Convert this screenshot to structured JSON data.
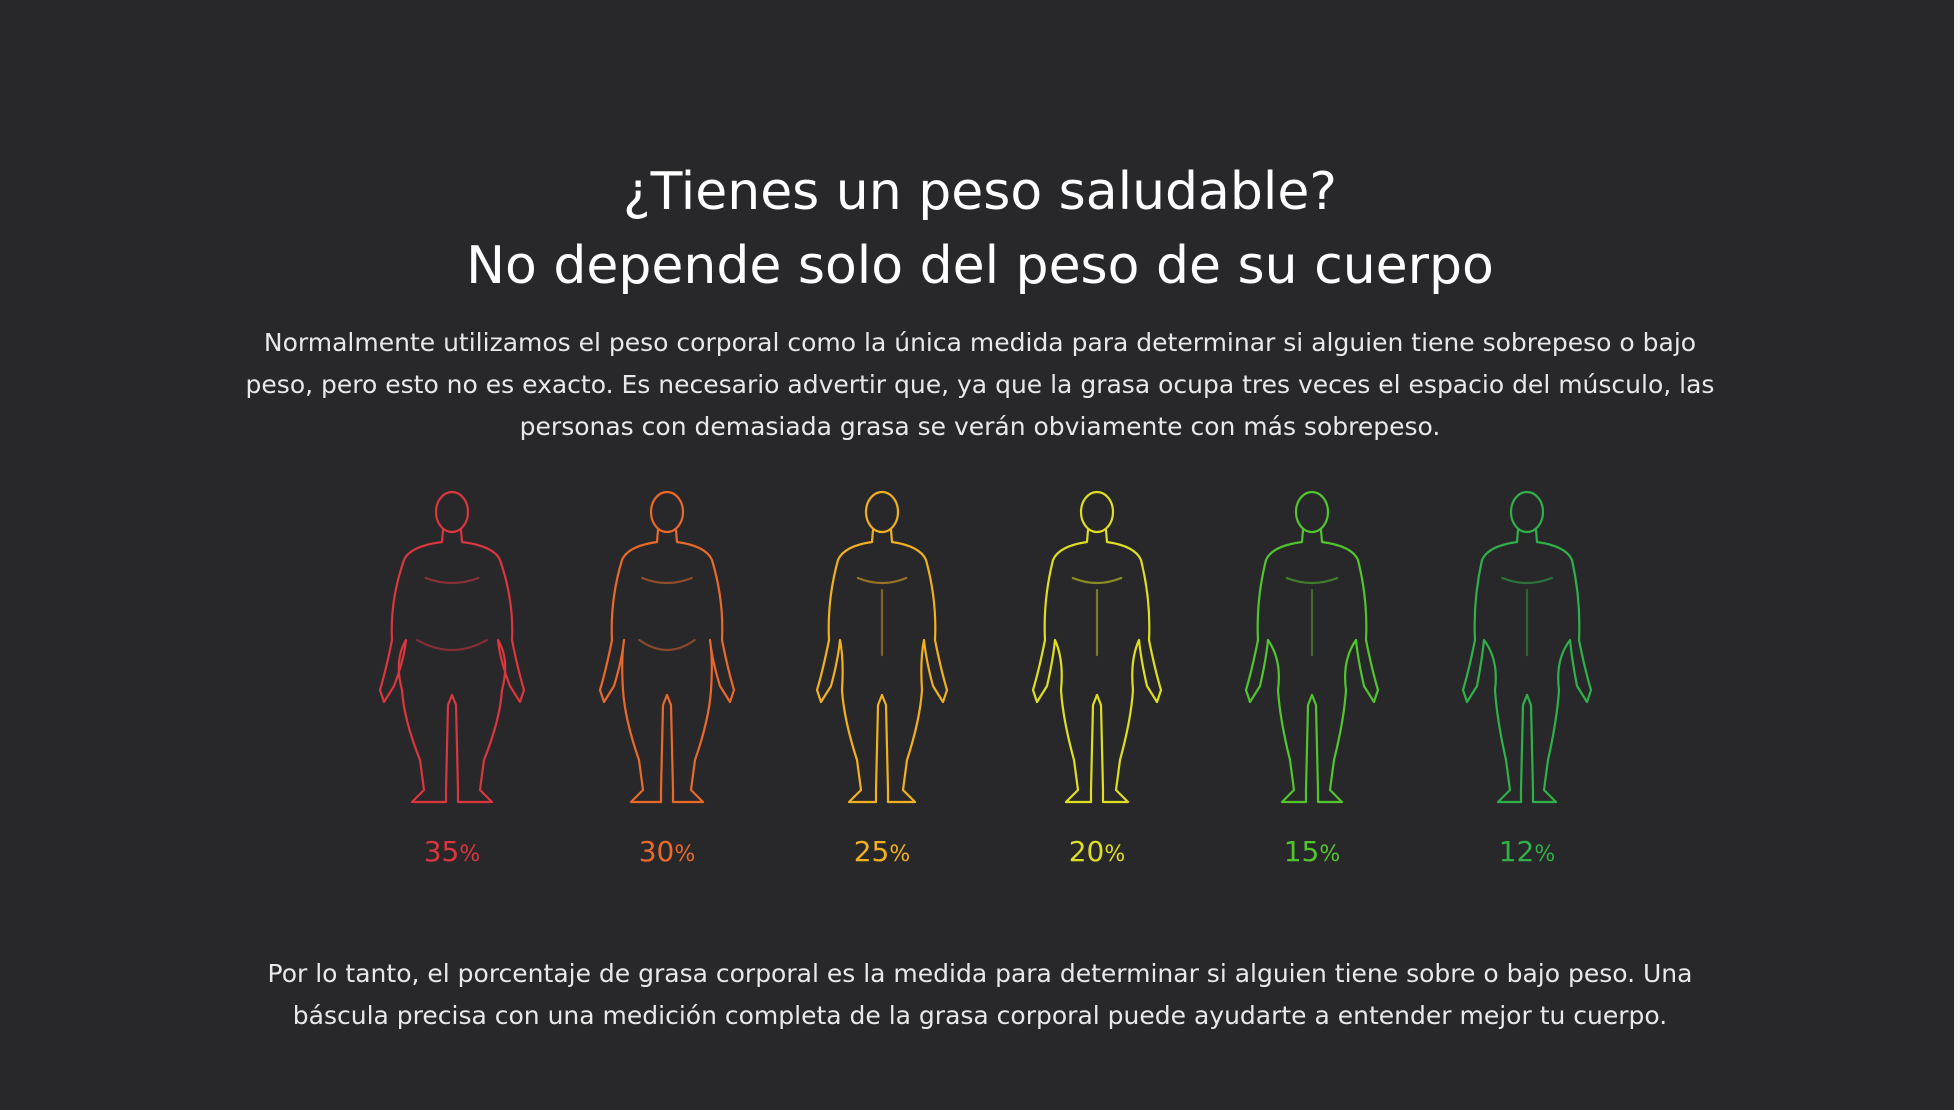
{
  "heading": {
    "line1": "¿Tienes un peso saludable?",
    "line2": "No depende solo del peso de su cuerpo"
  },
  "intro_text": "Normalmente utilizamos el peso corporal como la única medida para determinar si alguien tiene sobrepeso o bajo peso, pero esto no es exacto. Es necesario advertir que, ya que la grasa ocupa tres veces el espacio del músculo, las personas con demasiada grasa se verán obviamente con más sobrepeso.",
  "body_figures": [
    {
      "value": "35",
      "unit": "%",
      "color": "#d9363e",
      "icon": "obese-body-outline-icon"
    },
    {
      "value": "30",
      "unit": "%",
      "color": "#e8692a",
      "icon": "overweight-body-outline-icon"
    },
    {
      "value": "25",
      "unit": "%",
      "color": "#f0b020",
      "icon": "average-body-outline-icon"
    },
    {
      "value": "20",
      "unit": "%",
      "color": "#dede22",
      "icon": "fit-body-outline-icon"
    },
    {
      "value": "15",
      "unit": "%",
      "color": "#52c42c",
      "icon": "athletic-body-outline-icon"
    },
    {
      "value": "12",
      "unit": "%",
      "color": "#2fb048",
      "icon": "lean-body-outline-icon"
    }
  ],
  "outro_text": "Por lo tanto, el porcentaje de grasa corporal es la medida para determinar si alguien tiene sobre o bajo peso. Una báscula precisa con una medición completa de la grasa corporal puede ayudarte a entender mejor tu cuerpo."
}
